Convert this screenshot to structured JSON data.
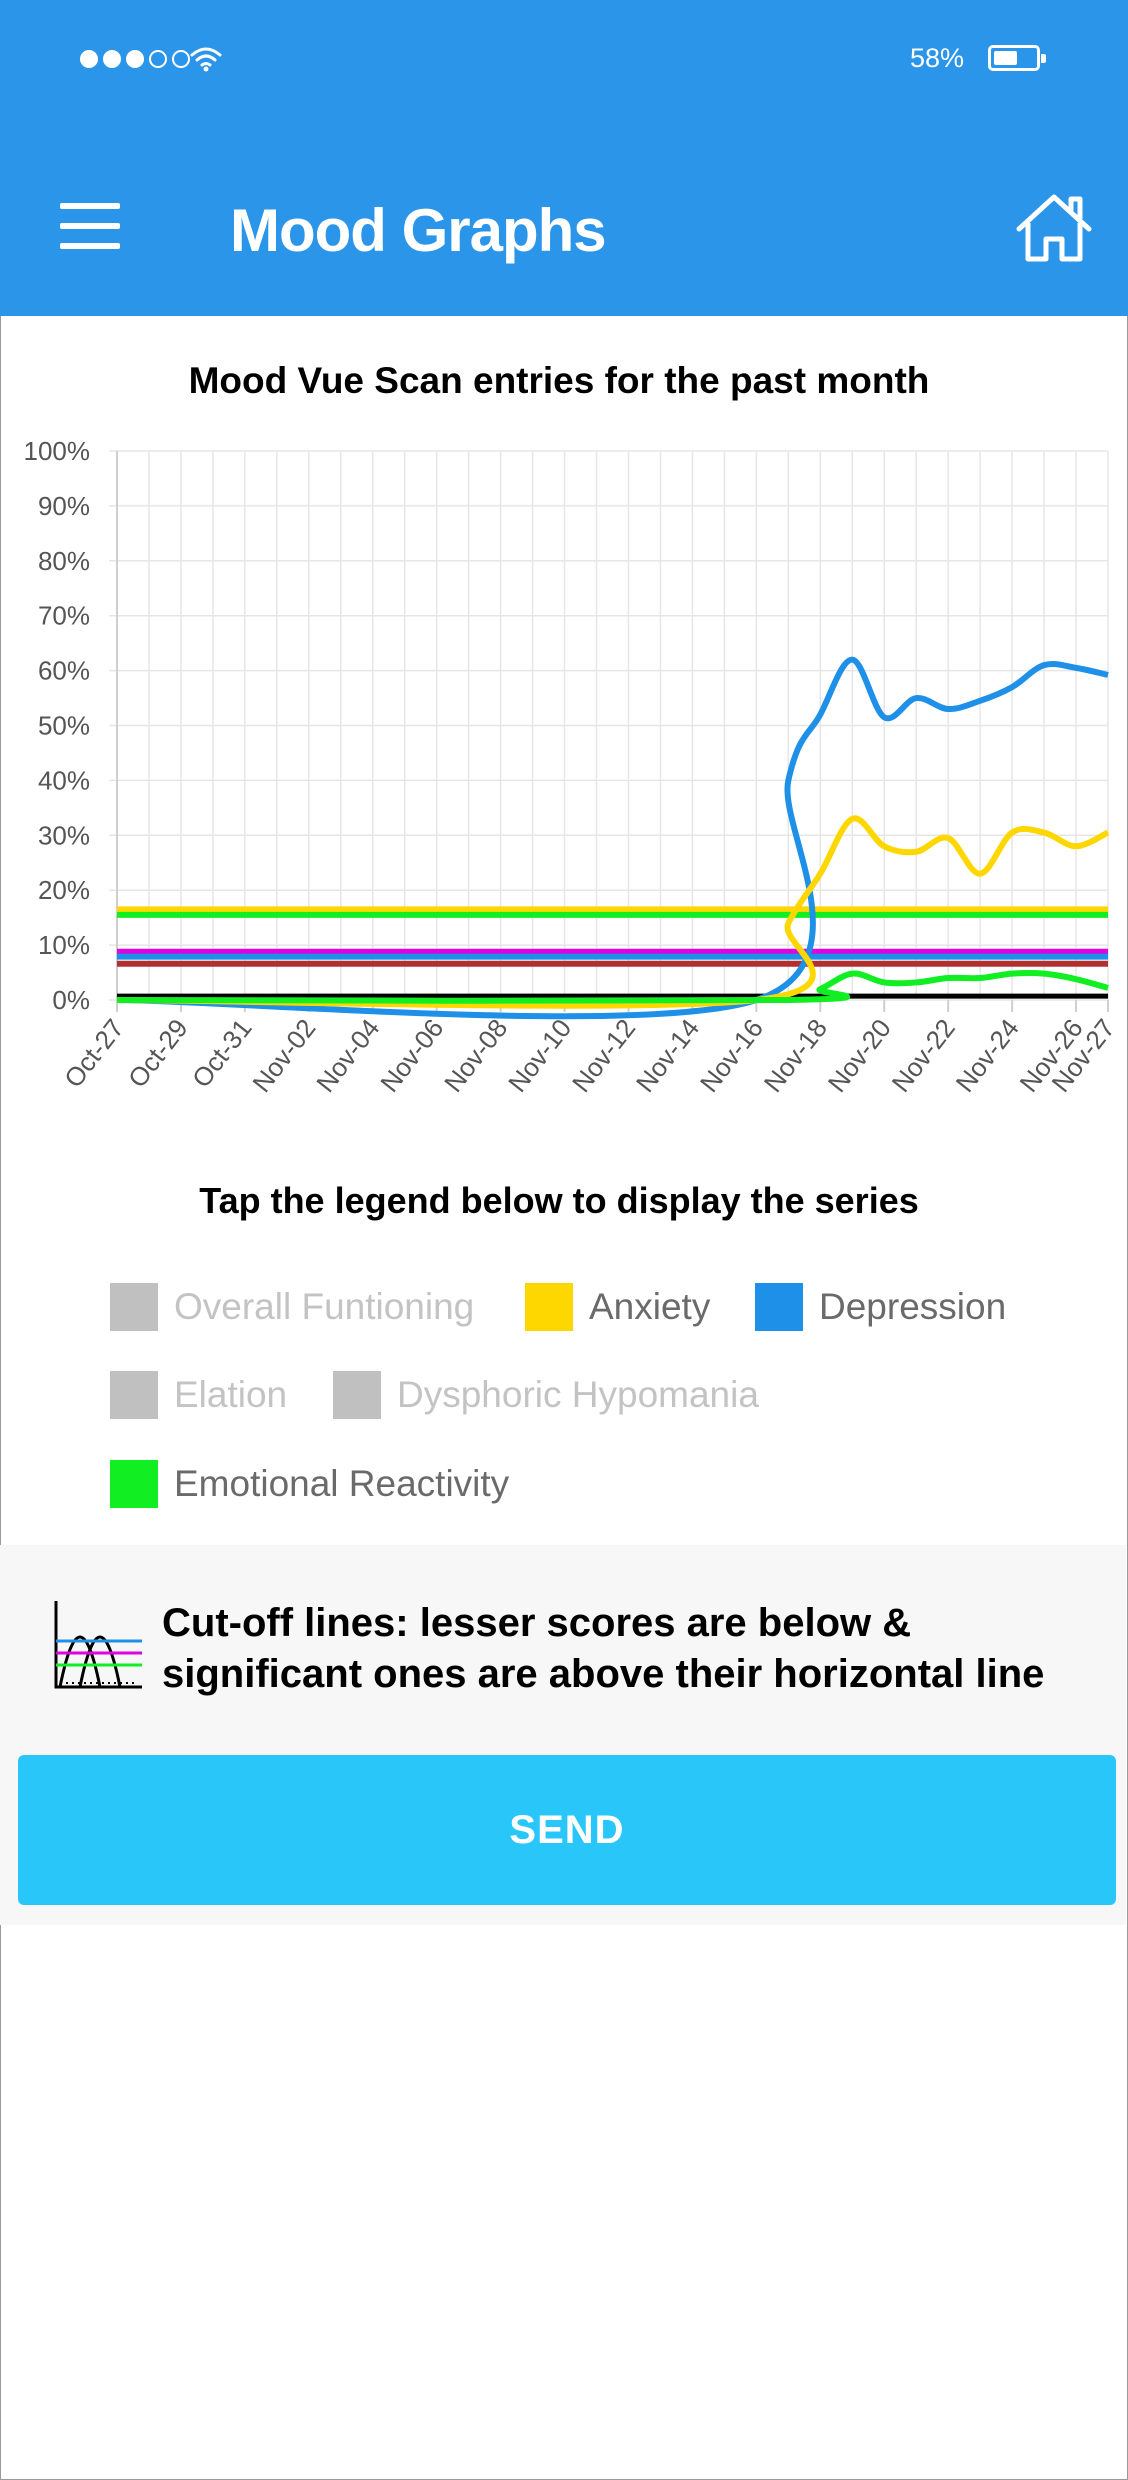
{
  "status_bar": {
    "signal_filled": 3,
    "signal_total": 5,
    "battery_percent": "58%",
    "battery_level": 0.58,
    "icons": [
      "signal-dots-icon",
      "wifi-icon",
      "battery-icon"
    ]
  },
  "app_bar": {
    "title": "Mood Graphs",
    "menu_icon": "hamburger-menu-icon",
    "home_icon": "home-icon",
    "color": "#2b95ea"
  },
  "chart_title": "Mood Vue Scan entries for the past month",
  "chart_data": {
    "type": "line",
    "title": "Mood Vue Scan entries for the past month",
    "x_tick_labels": [
      "Oct-27",
      "Oct-29",
      "Oct-31",
      "Nov-02",
      "Nov-04",
      "Nov-06",
      "Nov-08",
      "Nov-10",
      "Nov-12",
      "Nov-14",
      "Nov-16",
      "Nov-18",
      "Nov-20",
      "Nov-22",
      "Nov-24",
      "Nov-26",
      "Nov-27"
    ],
    "x_tick_days": [
      0,
      2,
      4,
      6,
      8,
      10,
      12,
      14,
      16,
      18,
      20,
      22,
      24,
      26,
      28,
      30,
      31
    ],
    "y_tick_labels": [
      "0%",
      "10%",
      "20%",
      "30%",
      "40%",
      "50%",
      "60%",
      "70%",
      "80%",
      "90%",
      "100%"
    ],
    "ylim": [
      0,
      100
    ],
    "grid": true,
    "series": [
      {
        "name": "Depression",
        "color": "#1e90e8",
        "points": [
          [
            "Oct-27",
            0
          ],
          [
            "Nov-16",
            0
          ],
          [
            "Nov-17",
            40
          ],
          [
            "Nov-18",
            52
          ],
          [
            "Nov-19",
            62
          ],
          [
            "Nov-20",
            51.5
          ],
          [
            "Nov-21",
            55
          ],
          [
            "Nov-22",
            53
          ],
          [
            "Nov-23",
            54.5
          ],
          [
            "Nov-24",
            57
          ],
          [
            "Nov-25",
            61
          ],
          [
            "Nov-26",
            60.5
          ],
          [
            "Nov-27",
            59.2
          ]
        ]
      },
      {
        "name": "Anxiety",
        "color": "#ffd700",
        "points": [
          [
            "Oct-27",
            0
          ],
          [
            "Nov-16",
            0
          ],
          [
            "Nov-17",
            14
          ],
          [
            "Nov-18",
            23
          ],
          [
            "Nov-19",
            33
          ],
          [
            "Nov-20",
            28
          ],
          [
            "Nov-21",
            27
          ],
          [
            "Nov-22",
            29.5
          ],
          [
            "Nov-23",
            23
          ],
          [
            "Nov-24",
            30.5
          ],
          [
            "Nov-25",
            30.5
          ],
          [
            "Nov-26",
            28
          ],
          [
            "Nov-27",
            30.5
          ]
        ]
      },
      {
        "name": "Emotional Reactivity",
        "color": "#11ee22",
        "points": [
          [
            "Oct-27",
            0
          ],
          [
            "Nov-17",
            0
          ],
          [
            "Nov-18",
            2
          ],
          [
            "Nov-19",
            4.8
          ],
          [
            "Nov-20",
            3.2
          ],
          [
            "Nov-21",
            3.2
          ],
          [
            "Nov-22",
            4
          ],
          [
            "Nov-23",
            4
          ],
          [
            "Nov-24",
            4.8
          ],
          [
            "Nov-25",
            4.8
          ],
          [
            "Nov-26",
            3.8
          ],
          [
            "Nov-27",
            2.2
          ]
        ]
      }
    ],
    "cutoff_lines": [
      {
        "series": "Anxiety",
        "value": 16.5,
        "color": "#ffd700"
      },
      {
        "series": "Emotional Reactivity",
        "value": 15.5,
        "color": "#11ee22"
      },
      {
        "series": "Dysphoric Hypomania",
        "value": 8.8,
        "color": "#e000e0"
      },
      {
        "series": "Depression",
        "value": 7.9,
        "color": "#1e90e8"
      },
      {
        "series": "Elation",
        "value": 6.6,
        "color": "#b03030"
      },
      {
        "series": "Overall Funtioning",
        "value": 0.7,
        "color": "#000000"
      }
    ]
  },
  "legend_prompt": "Tap the legend below to display the series",
  "legend": [
    {
      "label": "Overall Funtioning",
      "color": "#c0c0c0",
      "text_color": "#c3c3c3",
      "active": false
    },
    {
      "label": "Anxiety",
      "color": "#ffd700",
      "text_color": "#6a6a6a",
      "active": true
    },
    {
      "label": "Depression",
      "color": "#1e90e8",
      "text_color": "#6a6a6a",
      "active": true
    },
    {
      "label": "Elation",
      "color": "#c0c0c0",
      "text_color": "#c3c3c3",
      "active": false
    },
    {
      "label": "Dysphoric Hypomania",
      "color": "#c0c0c0",
      "text_color": "#c3c3c3",
      "active": false
    },
    {
      "label": "Emotional Reactivity",
      "color": "#11ee22",
      "text_color": "#6a6a6a",
      "active": true
    }
  ],
  "cutoff_note": {
    "icon": "cutoff-lines-icon",
    "text": "Cut-off lines: lesser scores are below & significant ones are above their horizontal line"
  },
  "send_button": {
    "label": "SEND",
    "color": "#29c6fa"
  }
}
